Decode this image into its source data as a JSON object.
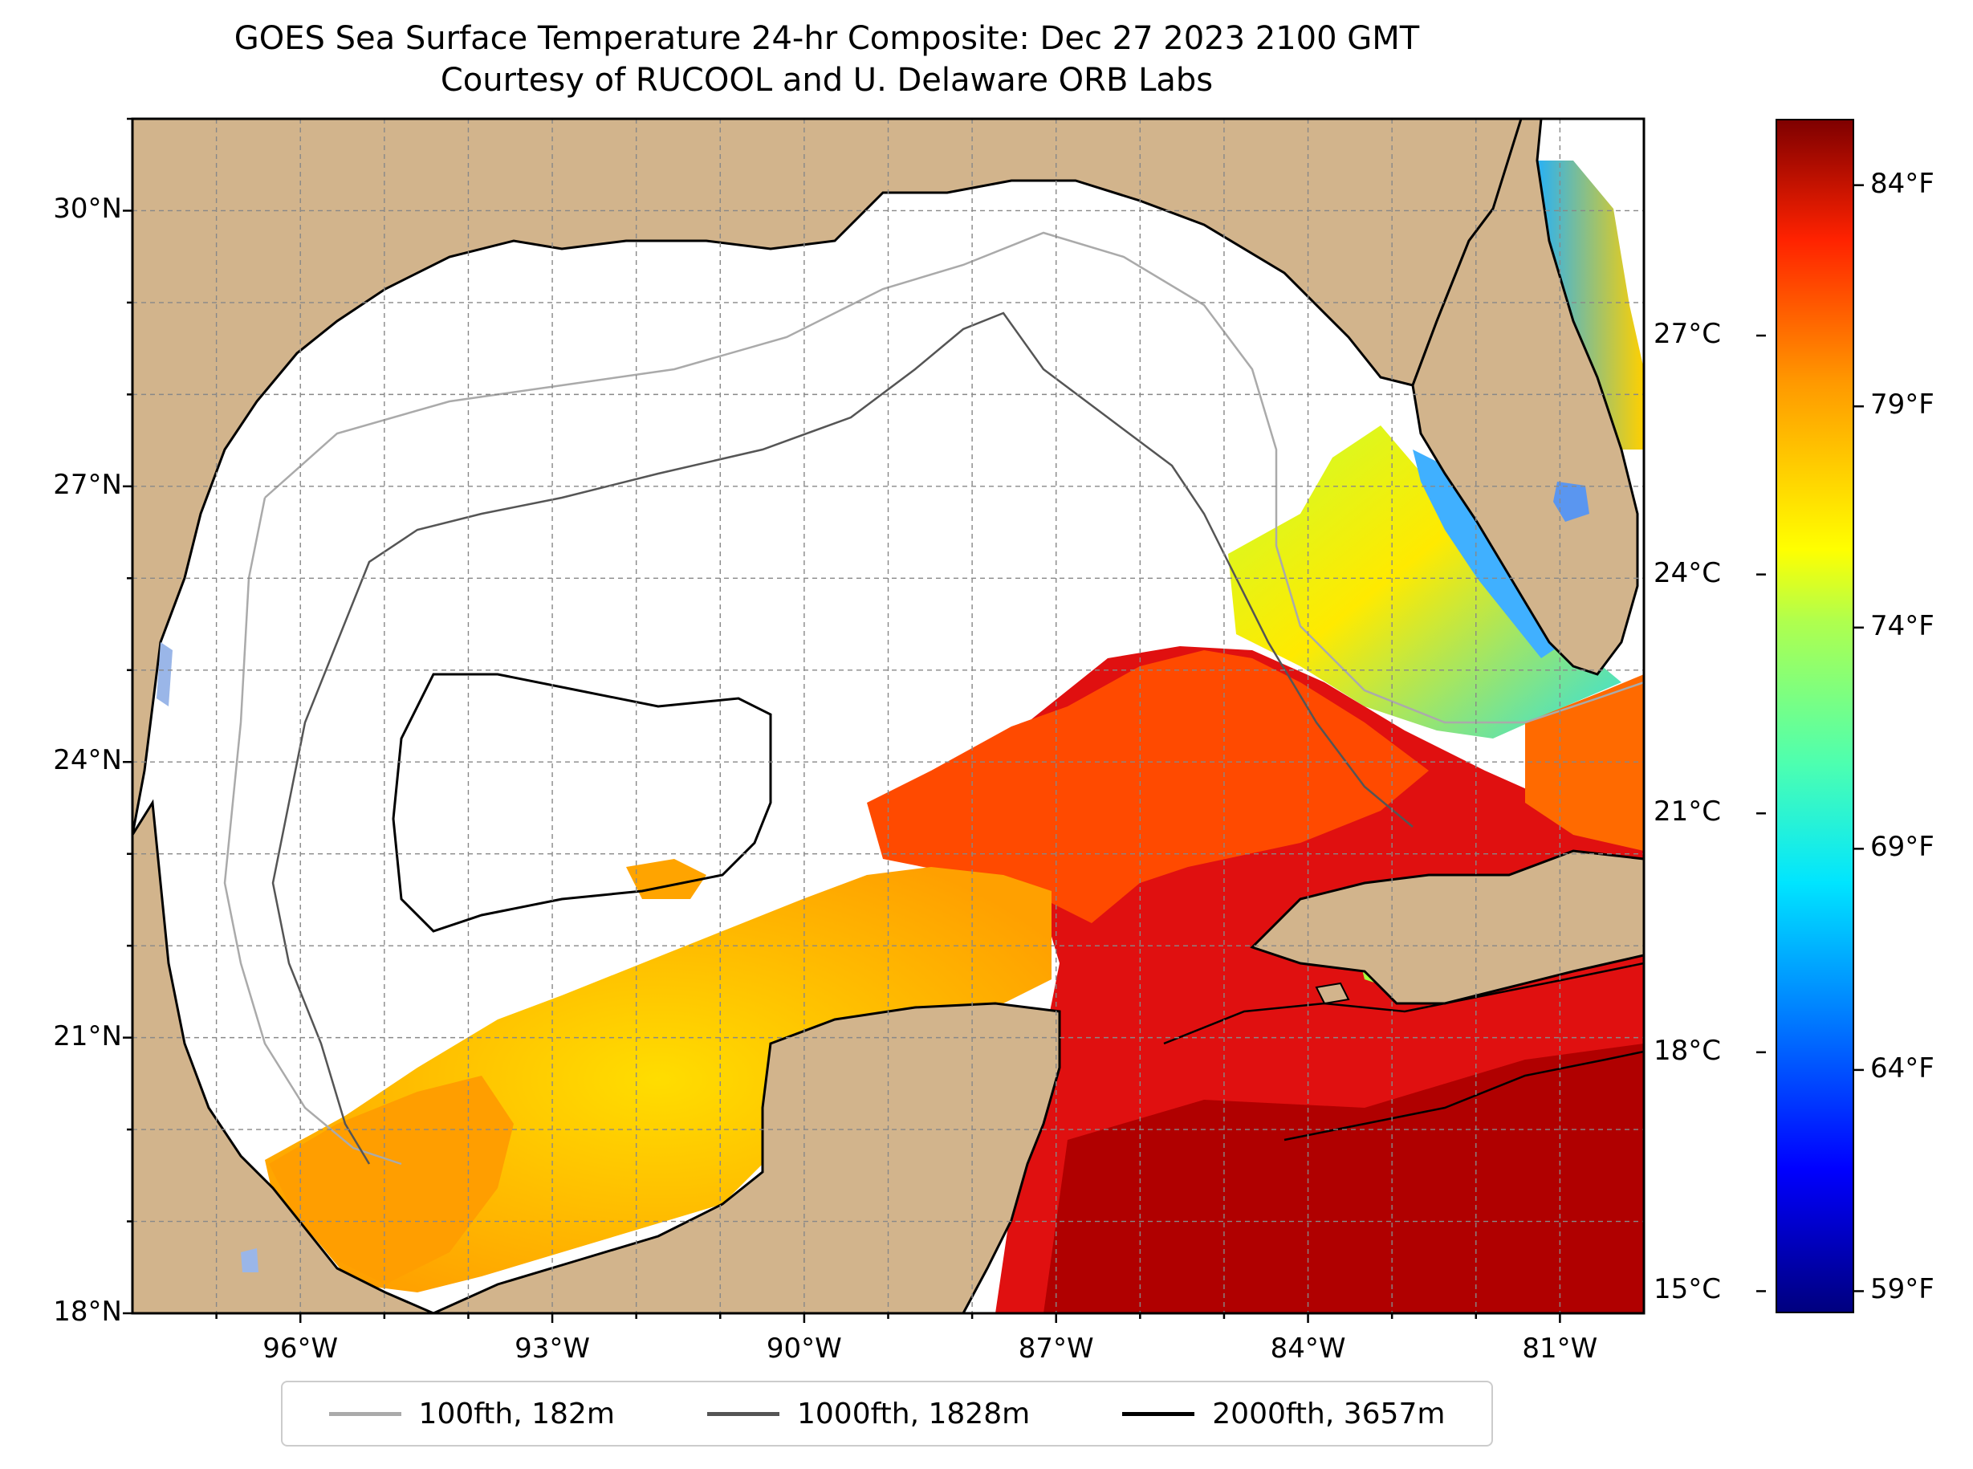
{
  "title": {
    "line1": "GOES Sea Surface Temperature 24-hr Composite: Dec 27 2023 2100 GMT",
    "line2": "Courtesy of RUCOOL and U. Delaware ORB Labs"
  },
  "map": {
    "lon_range": [
      -98,
      -80
    ],
    "lat_range": [
      18,
      31
    ],
    "lat_ticks": [
      {
        "value": 30,
        "label": "30°N"
      },
      {
        "value": 27,
        "label": "27°N"
      },
      {
        "value": 24,
        "label": "24°N"
      },
      {
        "value": 21,
        "label": "21°N"
      },
      {
        "value": 18,
        "label": "18°N"
      }
    ],
    "lon_ticks": [
      {
        "value": -96,
        "label": "96°W"
      },
      {
        "value": -93,
        "label": "93°W"
      },
      {
        "value": -90,
        "label": "90°W"
      },
      {
        "value": -87,
        "label": "87°W"
      },
      {
        "value": -84,
        "label": "84°W"
      },
      {
        "value": -81,
        "label": "81°W"
      }
    ],
    "gridlines": true,
    "land_color": "#d2b48c",
    "lake_color": "#9ab6e8",
    "no_data_color": "#ffffff"
  },
  "colorbar": {
    "colormap": "jet",
    "celsius_ticks": [
      {
        "value": 27,
        "label": "27°C"
      },
      {
        "value": 24,
        "label": "24°C"
      },
      {
        "value": 21,
        "label": "21°C"
      },
      {
        "value": 18,
        "label": "18°C"
      },
      {
        "value": 15,
        "label": "15°C"
      }
    ],
    "fahrenheit_ticks": [
      {
        "value": 84,
        "label": "84°F"
      },
      {
        "value": 79,
        "label": "79°F"
      },
      {
        "value": 74,
        "label": "74°F"
      },
      {
        "value": 69,
        "label": "69°F"
      },
      {
        "value": 64,
        "label": "64°F"
      },
      {
        "value": 59,
        "label": "59°F"
      }
    ]
  },
  "legend": {
    "position": "bottom-center",
    "items": [
      {
        "label": "100fth, 182m",
        "color": "#aaaaaa"
      },
      {
        "label": "1000fth, 1828m",
        "color": "#555555"
      },
      {
        "label": "2000fth, 3657m",
        "color": "#000000"
      }
    ]
  }
}
